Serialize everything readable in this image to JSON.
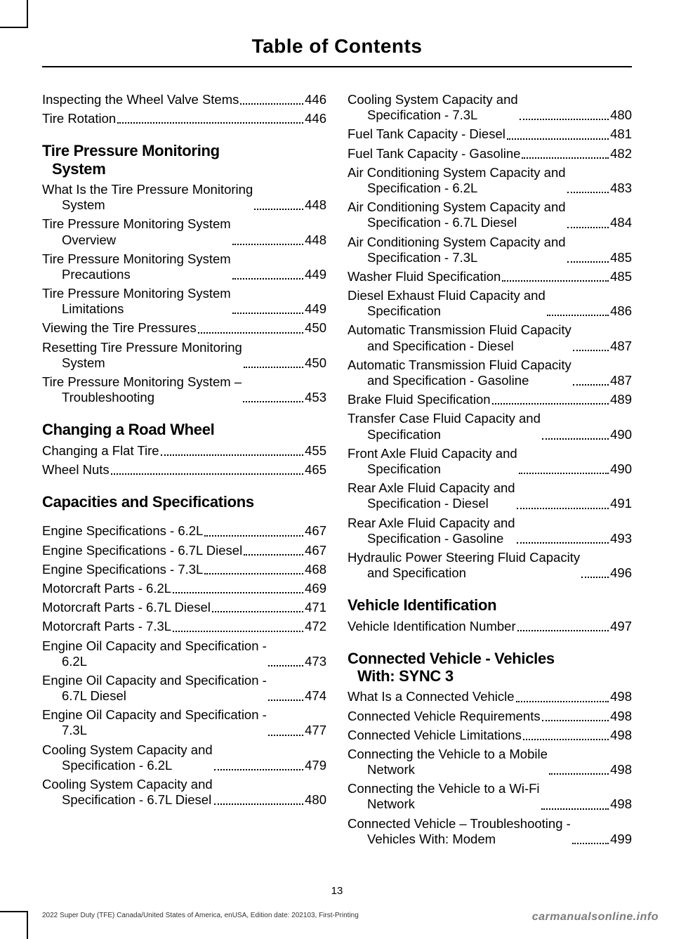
{
  "header": "Table of Contents",
  "page_number": "13",
  "footer_left": "2022 Super Duty (TFE) Canada/United States of America, enUSA, Edition date: 202103, First-Printing",
  "footer_right": "carmanualsonline.info",
  "left": {
    "pre": [
      {
        "label": "Inspecting the Wheel Valve Stems",
        "page": "446"
      },
      {
        "label": "Tire Rotation",
        "page": "446"
      }
    ],
    "s1": {
      "title_l1": "Tire Pressure Monitoring",
      "title_l2": "System",
      "items": [
        {
          "l1": "What Is the Tire Pressure Monitoring",
          "l2": "System",
          "page": "448"
        },
        {
          "l1": "Tire Pressure Monitoring System",
          "l2": "Overview",
          "page": "448"
        },
        {
          "l1": "Tire Pressure Monitoring System",
          "l2": "Precautions",
          "page": "449"
        },
        {
          "l1": "Tire Pressure Monitoring System",
          "l2": "Limitations",
          "page": "449"
        },
        {
          "l1": "Viewing the Tire Pressures",
          "page": "450"
        },
        {
          "l1": "Resetting Tire Pressure Monitoring",
          "l2": "System",
          "page": "450"
        },
        {
          "l1": "Tire Pressure Monitoring System –",
          "l2": "Troubleshooting",
          "page": "453"
        }
      ]
    },
    "s2": {
      "title": "Changing a Road Wheel",
      "items": [
        {
          "l1": "Changing a Flat Tire",
          "page": "455"
        },
        {
          "l1": "Wheel Nuts",
          "page": "465"
        }
      ]
    },
    "s3": {
      "title": "Capacities and Specifications",
      "items": [
        {
          "l1": "Engine Specifications - 6.2L",
          "page": "467"
        },
        {
          "l1": "Engine Specifications - 6.7L Diesel",
          "page": "467"
        },
        {
          "l1": "Engine Specifications - 7.3L",
          "page": "468"
        },
        {
          "l1": "Motorcraft Parts - 6.2L",
          "page": "469"
        },
        {
          "l1": "Motorcraft Parts - 6.7L Diesel",
          "page": "471"
        },
        {
          "l1": "Motorcraft Parts - 7.3L",
          "page": "472"
        },
        {
          "l1": "Engine Oil Capacity and Specification -",
          "l2": "6.2L",
          "page": "473"
        },
        {
          "l1": "Engine Oil Capacity and Specification -",
          "l2": "6.7L Diesel",
          "page": "474"
        },
        {
          "l1": "Engine Oil Capacity and Specification -",
          "l2": "7.3L",
          "page": "477"
        },
        {
          "l1": "Cooling System Capacity and",
          "l2": "Specification - 6.2L",
          "page": "479"
        },
        {
          "l1": "Cooling System Capacity and",
          "l2": "Specification - 6.7L Diesel",
          "page": "480"
        }
      ]
    }
  },
  "right": {
    "cont": [
      {
        "l1": "Cooling System Capacity and",
        "l2": "Specification - 7.3L",
        "page": "480"
      },
      {
        "l1": "Fuel Tank Capacity - Diesel",
        "page": "481"
      },
      {
        "l1": "Fuel Tank Capacity - Gasoline",
        "page": "482"
      },
      {
        "l1": "Air Conditioning System Capacity and",
        "l2": "Specification - 6.2L",
        "page": "483"
      },
      {
        "l1": "Air Conditioning System Capacity and",
        "l2": "Specification - 6.7L Diesel",
        "page": "484"
      },
      {
        "l1": "Air Conditioning System Capacity and",
        "l2": "Specification - 7.3L",
        "page": "485"
      },
      {
        "l1": "Washer Fluid Specification",
        "page": "485"
      },
      {
        "l1": "Diesel Exhaust Fluid Capacity and",
        "l2": "Specification",
        "page": "486"
      },
      {
        "l1": "Automatic Transmission Fluid Capacity",
        "l2": "and Specification - Diesel",
        "page": "487"
      },
      {
        "l1": "Automatic Transmission Fluid Capacity",
        "l2": "and Specification - Gasoline",
        "page": "487"
      },
      {
        "l1": "Brake Fluid Specification",
        "page": "489"
      },
      {
        "l1": "Transfer Case Fluid Capacity and",
        "l2": "Specification",
        "page": "490"
      },
      {
        "l1": "Front Axle Fluid Capacity and",
        "l2": "Specification",
        "page": "490"
      },
      {
        "l1": "Rear Axle Fluid Capacity and",
        "l2": "Specification - Diesel",
        "page": "491"
      },
      {
        "l1": "Rear Axle Fluid Capacity and",
        "l2": "Specification - Gasoline",
        "page": "493"
      },
      {
        "l1": "Hydraulic Power Steering Fluid Capacity",
        "l2": "and Specification",
        "page": "496"
      }
    ],
    "s1": {
      "title": "Vehicle Identification",
      "items": [
        {
          "l1": "Vehicle Identification Number",
          "page": "497"
        }
      ]
    },
    "s2": {
      "title_l1": "Connected Vehicle - Vehicles",
      "title_l2": "With: SYNC 3",
      "items": [
        {
          "l1": "What Is a Connected Vehicle",
          "page": "498"
        },
        {
          "l1": "Connected Vehicle Requirements",
          "page": "498"
        },
        {
          "l1": "Connected Vehicle Limitations",
          "page": "498"
        },
        {
          "l1": "Connecting the Vehicle to a Mobile",
          "l2": "Network",
          "page": "498"
        },
        {
          "l1": "Connecting the Vehicle to a Wi-Fi",
          "l2": "Network",
          "page": "498"
        },
        {
          "l1": "Connected Vehicle – Troubleshooting -",
          "l2": "Vehicles With: Modem",
          "page": "499"
        }
      ]
    }
  }
}
